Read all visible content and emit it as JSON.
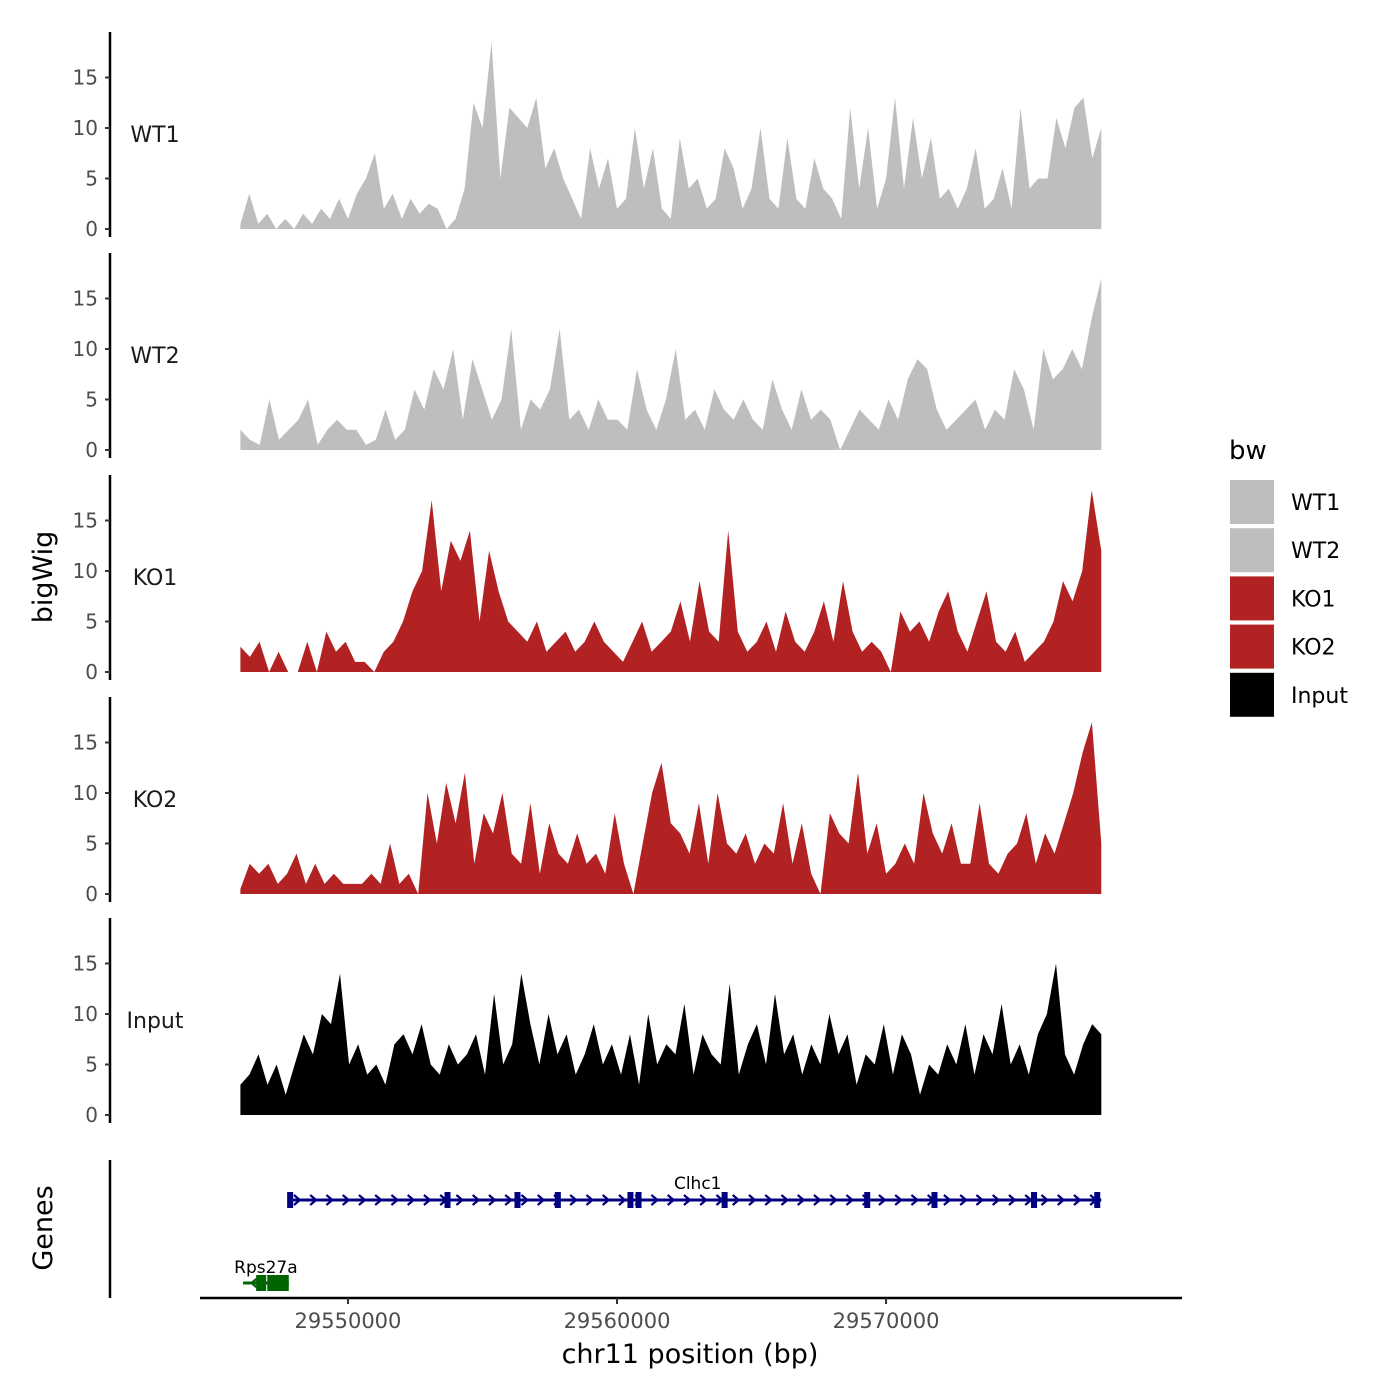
{
  "chart_data": {
    "type": "area",
    "title": "",
    "ylabel": "bigWig",
    "genes_label": "Genes",
    "xlabel": "chr11 position (bp)",
    "x_range_bp": [
      29544500,
      29581000
    ],
    "track_range_bp": [
      29546000,
      29578000
    ],
    "x_ticks": [
      29550000,
      29560000,
      29570000
    ],
    "x_tick_labels": [
      "29550000",
      "29560000",
      "29570000"
    ],
    "ylim": [
      0,
      19
    ],
    "y_ticks": [
      0,
      5,
      10,
      15
    ],
    "y_tick_labels": [
      "0",
      "5",
      "10",
      "15"
    ],
    "legend": {
      "title": "bw",
      "position": "right",
      "entries": [
        {
          "label": "WT1",
          "color": "#bebebe"
        },
        {
          "label": "WT2",
          "color": "#bebebe"
        },
        {
          "label": "KO1",
          "color": "#b22222"
        },
        {
          "label": "KO2",
          "color": "#b22222"
        },
        {
          "label": "Input",
          "color": "#000000"
        }
      ]
    },
    "series": [
      {
        "name": "WT1",
        "color": "#bebebe",
        "values": [
          0.5,
          3.5,
          0.5,
          1.5,
          0,
          1,
          0,
          1.5,
          0.5,
          2,
          1,
          3,
          1,
          3.5,
          5,
          7.5,
          2,
          3.5,
          1,
          3,
          1.5,
          2.5,
          2,
          0,
          1,
          4,
          12.5,
          10,
          18.5,
          5,
          12,
          11,
          10,
          13,
          6,
          8,
          5,
          3,
          1,
          8,
          4,
          7,
          2,
          3,
          10,
          4,
          8,
          2,
          1,
          9,
          4,
          5,
          2,
          3,
          8,
          6,
          2,
          4,
          10,
          3,
          2,
          9,
          3,
          2,
          7,
          4,
          3,
          1,
          12,
          4,
          10,
          2,
          5,
          13,
          4,
          11,
          5,
          9,
          3,
          4,
          2,
          4,
          8,
          2,
          3,
          6,
          2,
          12,
          4,
          5,
          5,
          11,
          8,
          12,
          13,
          7,
          10
        ]
      },
      {
        "name": "WT2",
        "color": "#bebebe",
        "values": [
          2,
          1,
          0.5,
          5,
          1,
          2,
          3,
          5,
          0.5,
          2,
          3,
          2,
          2,
          0.5,
          1,
          4,
          1,
          2,
          6,
          4,
          8,
          6,
          10,
          3,
          9,
          6,
          3,
          5,
          12,
          2,
          5,
          4,
          6,
          12,
          3,
          4,
          2,
          5,
          3,
          3,
          2,
          8,
          4,
          2,
          5,
          10,
          3,
          4,
          2,
          6,
          4,
          3,
          5,
          3,
          2,
          7,
          4,
          2,
          6,
          3,
          4,
          3,
          0,
          2,
          4,
          3,
          2,
          5,
          3,
          7,
          9,
          8,
          4,
          2,
          3,
          4,
          5,
          2,
          4,
          3,
          8,
          6,
          2,
          10,
          7,
          8,
          10,
          8,
          13,
          17
        ]
      },
      {
        "name": "KO1",
        "color": "#b22222",
        "values": [
          2.5,
          1.5,
          3,
          0,
          2,
          0,
          0,
          3,
          0,
          4,
          2,
          3,
          1,
          1,
          0,
          2,
          3,
          5,
          8,
          10,
          17,
          8,
          13,
          11,
          14,
          5,
          12,
          8,
          5,
          4,
          3,
          5,
          2,
          3,
          4,
          2,
          3,
          5,
          3,
          2,
          1,
          3,
          5,
          2,
          3,
          4,
          7,
          3,
          9,
          4,
          3,
          14,
          4,
          2,
          3,
          5,
          2,
          6,
          3,
          2,
          4,
          7,
          3,
          9,
          4,
          2,
          3,
          2,
          0,
          6,
          4,
          5,
          3,
          6,
          8,
          4,
          2,
          5,
          8,
          3,
          2,
          4,
          1,
          2,
          3,
          5,
          9,
          7,
          10,
          18,
          12
        ]
      },
      {
        "name": "KO2",
        "color": "#b22222",
        "values": [
          0.5,
          3,
          2,
          3,
          1,
          2,
          4,
          1,
          3,
          1,
          2,
          1,
          1,
          1,
          2,
          1,
          5,
          1,
          2,
          0,
          10,
          5,
          11,
          7,
          12,
          3,
          8,
          6,
          10,
          4,
          3,
          9,
          2,
          7,
          4,
          3,
          6,
          3,
          4,
          2,
          8,
          3,
          0,
          5,
          10,
          13,
          7,
          6,
          4,
          9,
          3,
          10,
          5,
          4,
          6,
          3,
          5,
          4,
          9,
          3,
          7,
          2,
          0,
          8,
          6,
          5,
          12,
          4,
          7,
          2,
          3,
          5,
          3,
          10,
          6,
          4,
          7,
          3,
          3,
          9,
          3,
          2,
          4,
          5,
          8,
          3,
          6,
          4,
          7,
          10,
          14,
          17,
          5
        ]
      },
      {
        "name": "Input",
        "color": "#000000",
        "values": [
          3,
          4,
          6,
          3,
          5,
          2,
          5,
          8,
          6,
          10,
          9,
          14,
          5,
          7,
          4,
          5,
          3,
          7,
          8,
          6,
          9,
          5,
          4,
          7,
          5,
          6,
          8,
          4,
          12,
          5,
          7,
          14,
          9,
          5,
          10,
          6,
          8,
          4,
          6,
          9,
          5,
          7,
          4,
          8,
          3,
          10,
          5,
          7,
          6,
          11,
          4,
          8,
          6,
          5,
          13,
          4,
          7,
          9,
          5,
          12,
          6,
          8,
          4,
          7,
          5,
          10,
          6,
          8,
          3,
          6,
          5,
          9,
          4,
          8,
          6,
          2,
          5,
          4,
          7,
          5,
          9,
          4,
          8,
          6,
          11,
          5,
          7,
          4,
          8,
          10,
          15,
          6,
          4,
          7,
          9,
          8
        ]
      }
    ],
    "genes": [
      {
        "name": "Clhc1",
        "strand": "+",
        "start": 29547800,
        "end": 29578000,
        "color": "#000080",
        "exons": [
          29547850,
          29553700,
          29556300,
          29557800,
          29560500,
          29560800,
          29564000,
          29569300,
          29571800,
          29575500,
          29577850
        ]
      },
      {
        "name": "Rps27a",
        "strand": "-",
        "start": 29546100,
        "end": 29547800,
        "color": "#006400",
        "exons": [
          29546700,
          29547000
        ]
      }
    ]
  }
}
